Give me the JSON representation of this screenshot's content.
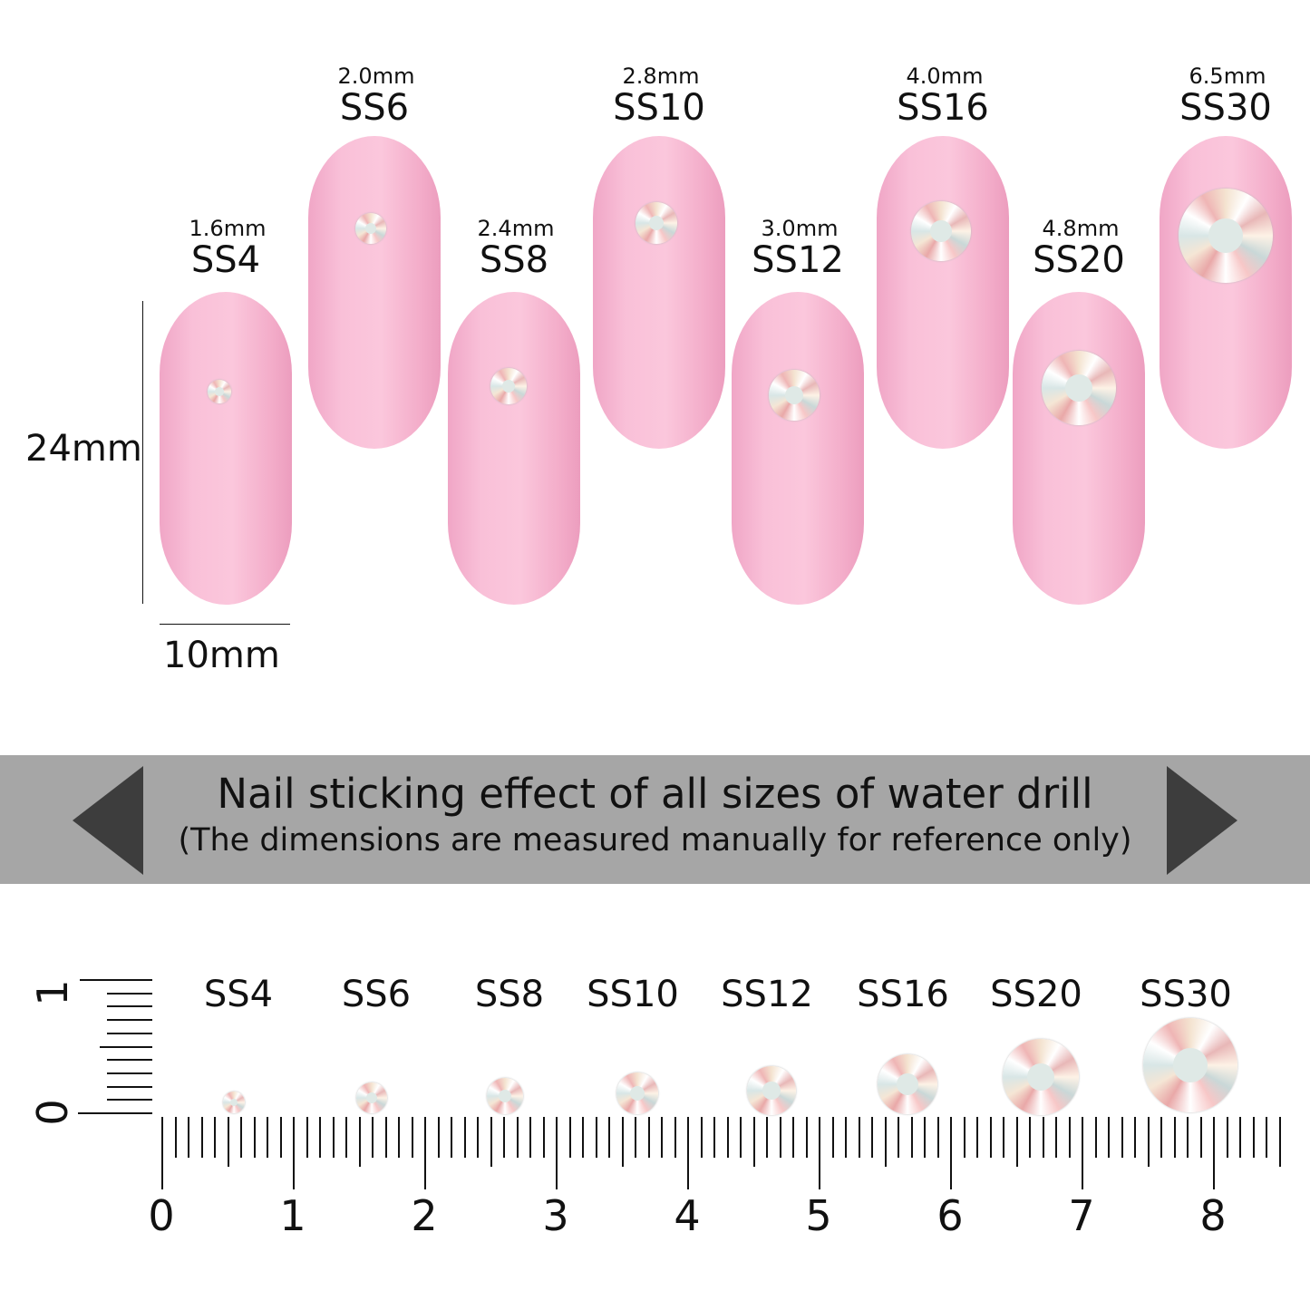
{
  "sizes": [
    {
      "name": "SS4",
      "mm": "1.6mm"
    },
    {
      "name": "SS6",
      "mm": "2.0mm"
    },
    {
      "name": "SS8",
      "mm": "2.4mm"
    },
    {
      "name": "SS10",
      "mm": "2.8mm"
    },
    {
      "name": "SS12",
      "mm": "3.0mm"
    },
    {
      "name": "SS16",
      "mm": "4.0mm"
    },
    {
      "name": "SS20",
      "mm": "4.8mm"
    },
    {
      "name": "SS30",
      "mm": "6.5mm"
    }
  ],
  "dimensions": {
    "height": "24mm",
    "width": "10mm"
  },
  "banner": {
    "title": "Nail sticking effect of all sizes of water drill",
    "subtitle": "(The dimensions are measured manually for reference only)"
  },
  "ruler": {
    "cm_labels": [
      "0",
      "1",
      "2",
      "3",
      "4",
      "5",
      "6",
      "7",
      "8"
    ],
    "vertical_labels": [
      "0",
      "1"
    ]
  },
  "colors": {
    "nail": "#f9c0d8",
    "banner": "#a6a6a6"
  }
}
